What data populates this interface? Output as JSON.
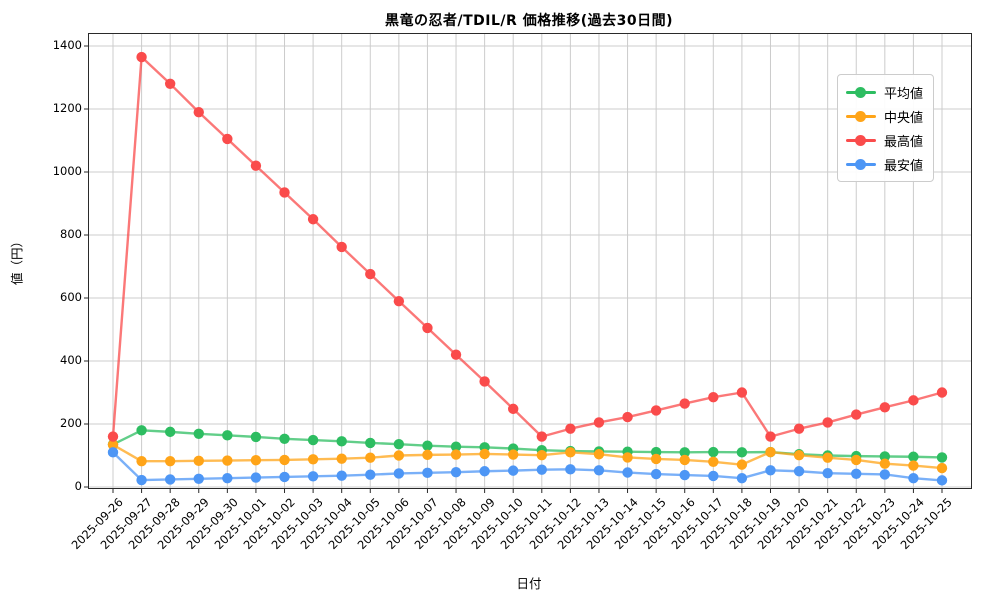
{
  "title": "黒竜の忍者/TDIL/R 価格推移(過去30日間)",
  "chart_data": {
    "type": "line",
    "title": "黒竜の忍者/TDIL/R 価格推移(過去30日間)",
    "xlabel": "日付",
    "ylabel": "値（円）",
    "grid": true,
    "legend_position": "upper right",
    "ylim": [
      -70,
      1450
    ],
    "y_ticks": [
      0,
      200,
      400,
      600,
      800,
      1000,
      1200,
      1400
    ],
    "x": [
      "2025-09-26",
      "2025-09-27",
      "2025-09-28",
      "2025-09-29",
      "2025-09-30",
      "2025-10-01",
      "2025-10-02",
      "2025-10-03",
      "2025-10-04",
      "2025-10-05",
      "2025-10-06",
      "2025-10-07",
      "2025-10-08",
      "2025-10-09",
      "2025-10-10",
      "2025-10-11",
      "2025-10-12",
      "2025-10-13",
      "2025-10-14",
      "2025-10-15",
      "2025-10-16",
      "2025-10-17",
      "2025-10-18",
      "2025-10-19",
      "2025-10-20",
      "2025-10-21",
      "2025-10-22",
      "2025-10-23",
      "2025-10-24",
      "2025-10-25"
    ],
    "series": [
      {
        "id": "mean",
        "name": "平均値",
        "color": "#2dbd61",
        "values": [
          135,
          180,
          175,
          169,
          164,
          159,
          153,
          149,
          145,
          140,
          136,
          131,
          128,
          126,
          122,
          117,
          114,
          113,
          112,
          111,
          110,
          111,
          110,
          111,
          104,
          100,
          98,
          97,
          96,
          94
        ]
      },
      {
        "id": "median",
        "name": "中央値",
        "color": "#ffa418",
        "values": [
          134,
          82,
          82,
          83,
          84,
          85,
          86,
          88,
          90,
          93,
          100,
          102,
          103,
          105,
          103,
          101,
          110,
          104,
          94,
          89,
          86,
          80,
          71,
          111,
          101,
          93,
          86,
          74,
          68,
          60
        ]
      },
      {
        "id": "max",
        "name": "最高値",
        "color": "#fa4b4b",
        "values": [
          160,
          1365,
          1280,
          1190,
          1105,
          1020,
          935,
          850,
          762,
          676,
          590,
          505,
          420,
          335,
          248,
          160,
          185,
          205,
          222,
          243,
          265,
          285,
          300,
          160,
          185,
          205,
          230,
          253,
          275,
          300
        ]
      },
      {
        "id": "min",
        "name": "最安値",
        "color": "#4d96f5",
        "values": [
          110,
          22,
          24,
          26,
          28,
          30,
          32,
          34,
          36,
          39,
          43,
          45,
          47,
          50,
          52,
          55,
          56,
          53,
          46,
          41,
          38,
          35,
          28,
          53,
          50,
          44,
          42,
          40,
          28,
          21
        ]
      }
    ],
    "colors": {
      "grid": "#cccccc",
      "spine": "#2a2a2a",
      "background": "#ffffff",
      "text": "#000000"
    }
  }
}
